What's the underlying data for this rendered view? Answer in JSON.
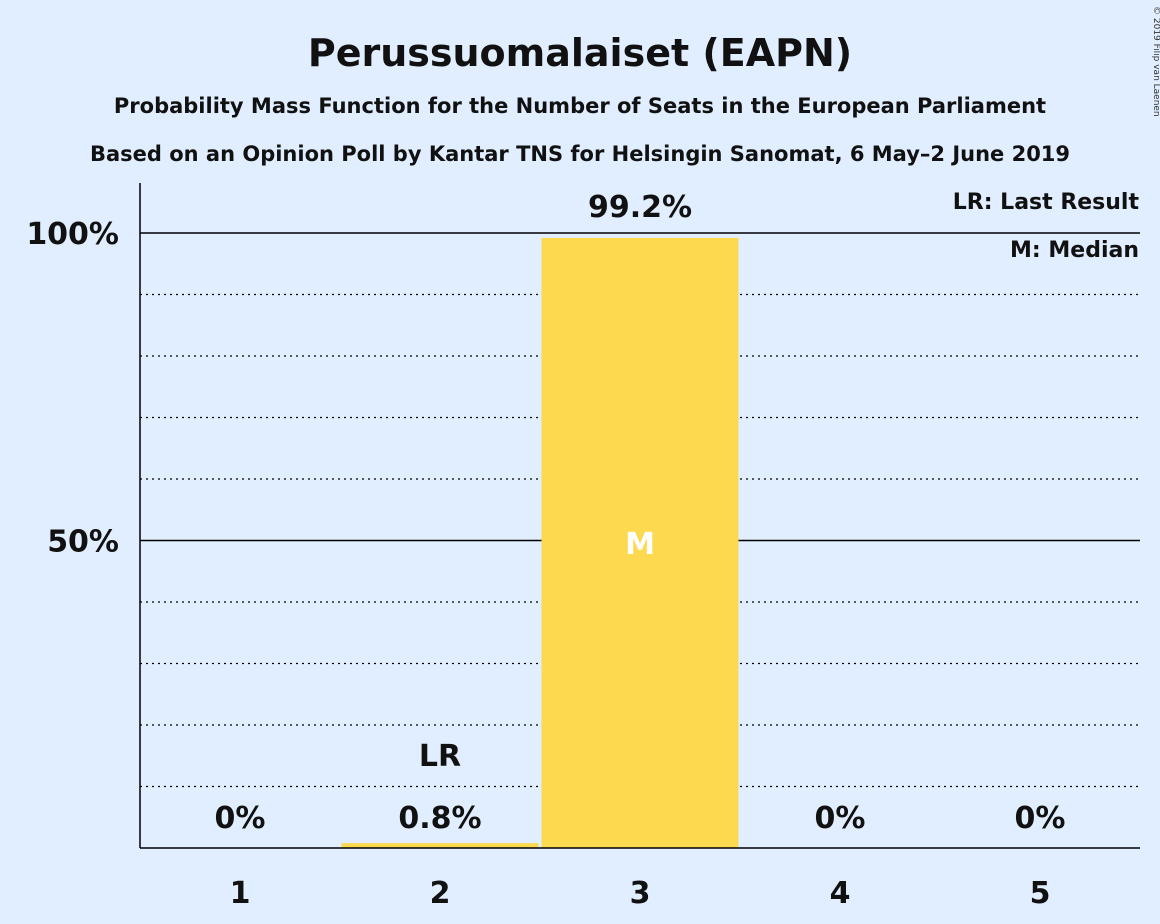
{
  "chart_data": {
    "type": "bar",
    "title": "Perussuomalaiset (EAPN)",
    "subtitle": "Probability Mass Function for the Number of Seats in the European Parliament",
    "subtitle2": "Based on an Opinion Poll by Kantar TNS for Helsingin Sanomat, 6 May–2 June 2019",
    "categories": [
      "1",
      "2",
      "3",
      "4",
      "5"
    ],
    "values": [
      0,
      0.8,
      99.2,
      0,
      0
    ],
    "value_labels": [
      "0%",
      "0.8%",
      "99.2%",
      "0%",
      "0%"
    ],
    "ylim": [
      0,
      100
    ],
    "yticks": [
      {
        "value": 50,
        "label": "50%"
      },
      {
        "value": 100,
        "label": "100%"
      }
    ],
    "minor_grid": [
      10,
      20,
      30,
      40,
      60,
      70,
      80,
      90
    ],
    "last_result": {
      "category": "2",
      "label": "LR"
    },
    "median": {
      "category": "3",
      "label": "M"
    },
    "legend": {
      "placement": "top-right",
      "items": [
        "LR: Last Result",
        "M: Median"
      ]
    },
    "bar_color": "#fdd94f",
    "copyright": "© 2019 Filip van Laenen"
  }
}
